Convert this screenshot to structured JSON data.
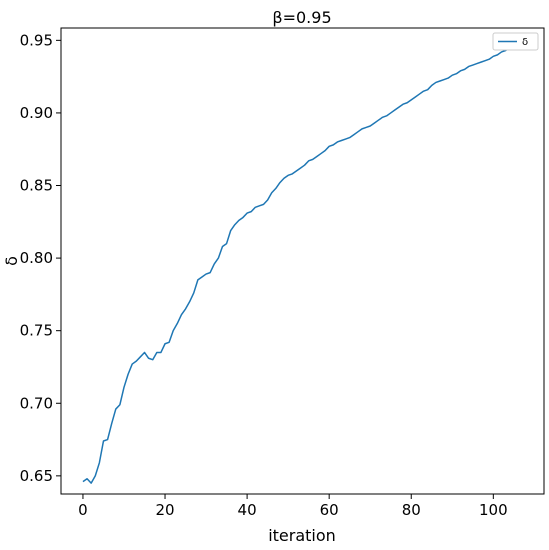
{
  "chart_data": {
    "type": "line",
    "title": "β=0.95",
    "xlabel": "iteration",
    "ylabel": "δ",
    "xlim": [
      -5.35,
      112.35
    ],
    "ylim": [
      0.6375,
      0.9585
    ],
    "xticks": [
      0,
      20,
      40,
      60,
      80,
      100
    ],
    "xtick_labels": [
      "0",
      "20",
      "40",
      "60",
      "80",
      "100"
    ],
    "yticks": [
      0.65,
      0.7,
      0.75,
      0.8,
      0.85,
      0.9,
      0.95
    ],
    "ytick_labels": [
      "0.65",
      "0.70",
      "0.75",
      "0.80",
      "0.85",
      "0.90",
      "0.95"
    ],
    "grid": false,
    "legend_position": "top-right",
    "series": [
      {
        "name": "δ",
        "color": "#1f77b4",
        "x": [
          0,
          1,
          2,
          3,
          4,
          5,
          6,
          7,
          8,
          9,
          10,
          11,
          12,
          13,
          14,
          15,
          16,
          17,
          18,
          19,
          20,
          21,
          22,
          23,
          24,
          25,
          26,
          27,
          28,
          29,
          30,
          31,
          32,
          33,
          34,
          35,
          36,
          37,
          38,
          39,
          40,
          41,
          42,
          43,
          44,
          45,
          46,
          47,
          48,
          49,
          50,
          51,
          52,
          53,
          54,
          55,
          56,
          57,
          58,
          59,
          60,
          61,
          62,
          63,
          64,
          65,
          66,
          67,
          68,
          69,
          70,
          71,
          72,
          73,
          74,
          75,
          76,
          77,
          78,
          79,
          80,
          81,
          82,
          83,
          84,
          85,
          86,
          87,
          88,
          89,
          90,
          91,
          92,
          93,
          94,
          95,
          96,
          97,
          98,
          99,
          100,
          101,
          102,
          103,
          104,
          105,
          106,
          107
        ],
        "values": [
          0.646,
          0.648,
          0.645,
          0.65,
          0.659,
          0.674,
          0.675,
          0.686,
          0.696,
          0.699,
          0.711,
          0.72,
          0.727,
          0.729,
          0.732,
          0.735,
          0.731,
          0.73,
          0.735,
          0.735,
          0.741,
          0.742,
          0.75,
          0.755,
          0.761,
          0.765,
          0.77,
          0.776,
          0.785,
          0.787,
          0.789,
          0.79,
          0.796,
          0.8,
          0.808,
          0.81,
          0.819,
          0.823,
          0.826,
          0.828,
          0.831,
          0.832,
          0.835,
          0.836,
          0.837,
          0.84,
          0.845,
          0.848,
          0.852,
          0.855,
          0.857,
          0.858,
          0.86,
          0.862,
          0.864,
          0.867,
          0.868,
          0.87,
          0.872,
          0.874,
          0.877,
          0.878,
          0.88,
          0.881,
          0.882,
          0.883,
          0.885,
          0.887,
          0.889,
          0.89,
          0.891,
          0.893,
          0.895,
          0.897,
          0.898,
          0.9,
          0.902,
          0.904,
          0.906,
          0.907,
          0.909,
          0.911,
          0.913,
          0.915,
          0.916,
          0.919,
          0.921,
          0.922,
          0.923,
          0.924,
          0.926,
          0.927,
          0.929,
          0.93,
          0.932,
          0.933,
          0.934,
          0.935,
          0.936,
          0.937,
          0.939,
          0.94,
          0.942,
          0.943,
          0.945,
          0.946,
          0.948,
          0.95
        ]
      }
    ]
  }
}
